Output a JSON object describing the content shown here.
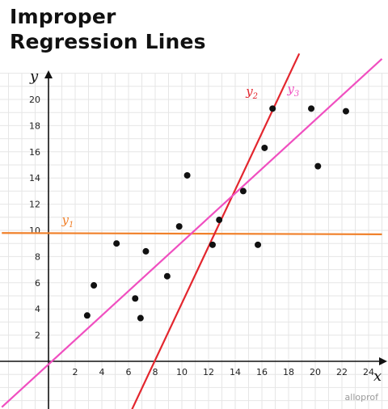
{
  "chart_data": {
    "type": "scatter",
    "title_lines": [
      "Improper",
      "Regression Lines"
    ],
    "xlabel": "x",
    "ylabel": "y",
    "xlim": [
      -3.5,
      25
    ],
    "ylim": [
      -3.8,
      22.8
    ],
    "grid": true,
    "x_ticks": [
      2,
      4,
      6,
      8,
      10,
      12,
      14,
      16,
      18,
      20,
      22,
      24
    ],
    "y_ticks": [
      2,
      4,
      6,
      8,
      10,
      12,
      14,
      16,
      18,
      20
    ],
    "points": [
      {
        "x": 2.9,
        "y": 3.5
      },
      {
        "x": 3.4,
        "y": 5.8
      },
      {
        "x": 5.1,
        "y": 9.0
      },
      {
        "x": 6.5,
        "y": 4.8
      },
      {
        "x": 6.9,
        "y": 3.3
      },
      {
        "x": 7.3,
        "y": 8.4
      },
      {
        "x": 8.9,
        "y": 6.5
      },
      {
        "x": 9.8,
        "y": 10.3
      },
      {
        "x": 10.4,
        "y": 14.2
      },
      {
        "x": 12.3,
        "y": 8.9
      },
      {
        "x": 12.8,
        "y": 10.8
      },
      {
        "x": 14.6,
        "y": 13.0
      },
      {
        "x": 15.7,
        "y": 8.9
      },
      {
        "x": 16.2,
        "y": 16.3
      },
      {
        "x": 16.8,
        "y": 19.3
      },
      {
        "x": 19.7,
        "y": 19.3
      },
      {
        "x": 20.2,
        "y": 14.9
      },
      {
        "x": 22.3,
        "y": 19.1
      }
    ],
    "lines": [
      {
        "name": "y1",
        "label_main": "y",
        "label_sub": "1",
        "color": "#f0802a",
        "points": [
          [
            -3.5,
            9.8
          ],
          [
            25,
            9.7
          ]
        ],
        "label_at": [
          1.0,
          10.5
        ]
      },
      {
        "name": "y2",
        "label_main": "y",
        "label_sub": "2",
        "color": "#e3262e",
        "points": [
          [
            6.2,
            -3.8
          ],
          [
            18.8,
            23.5
          ]
        ],
        "label_at": [
          14.8,
          20.3
        ]
      },
      {
        "name": "y3",
        "label_main": "y",
        "label_sub": "3",
        "color": "#f04fc0",
        "points": [
          [
            -3.5,
            -3.5
          ],
          [
            25,
            23.1
          ]
        ],
        "label_at": [
          17.9,
          20.5
        ]
      }
    ]
  },
  "branding": {
    "logo_text": "alloprof"
  }
}
